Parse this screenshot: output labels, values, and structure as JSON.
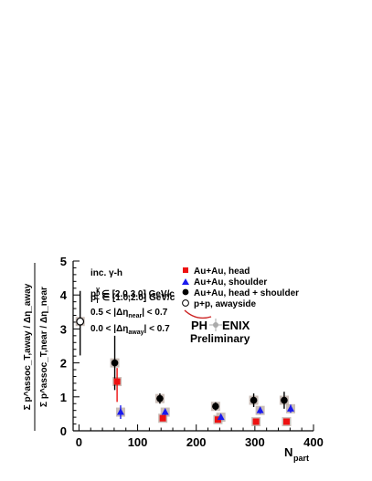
{
  "chart_data": {
    "type": "scatter",
    "title": "",
    "xlabel": "N",
    "xlabel_sub": "part",
    "ylabel_num": "Σ p^assoc_T,away / Δη_away",
    "ylabel_den": "Σ p^assoc_T,near / Δη_near",
    "xlim": [
      -10,
      400
    ],
    "ylim": [
      0,
      5
    ],
    "x_ticks": [
      0,
      100,
      200,
      300,
      400
    ],
    "y_ticks": [
      0,
      1,
      2,
      3,
      4,
      5
    ],
    "x_tick_labels": [
      "0",
      "100",
      "200",
      "300",
      "400"
    ],
    "y_tick_labels": [
      "0",
      "1",
      "2",
      "3",
      "4",
      "5"
    ],
    "grid": false,
    "legend_position": "top-right",
    "series": [
      {
        "name": "Au+Au, head",
        "marker": "square",
        "color": "#ee1111",
        "points": [
          {
            "x": 65,
            "y": 1.45,
            "err_lo": 0.6,
            "err_hi": 0.4
          },
          {
            "x": 143,
            "y": 0.37,
            "err_lo": 0.06,
            "err_hi": 0.06
          },
          {
            "x": 237,
            "y": 0.33,
            "err_lo": 0.05,
            "err_hi": 0.05
          },
          {
            "x": 302,
            "y": 0.27,
            "err_lo": 0.05,
            "err_hi": 0.05
          },
          {
            "x": 354,
            "y": 0.27,
            "err_lo": 0.05,
            "err_hi": 0.05
          }
        ]
      },
      {
        "name": "Au+Au, shoulder",
        "marker": "triangle",
        "color": "#1a1aee",
        "points": [
          {
            "x": 71,
            "y": 0.55,
            "err_lo": 0.2,
            "err_hi": 0.2
          },
          {
            "x": 147,
            "y": 0.55,
            "err_lo": 0.1,
            "err_hi": 0.1
          },
          {
            "x": 242,
            "y": 0.4,
            "err_lo": 0.07,
            "err_hi": 0.07
          },
          {
            "x": 309,
            "y": 0.6,
            "err_lo": 0.1,
            "err_hi": 0.1
          },
          {
            "x": 361,
            "y": 0.65,
            "err_lo": 0.12,
            "err_hi": 0.12
          }
        ]
      },
      {
        "name": "Au+Au, head + shoulder",
        "marker": "circle",
        "color": "#000000",
        "points": [
          {
            "x": 61,
            "y": 2.0,
            "err_lo": 0.8,
            "err_hi": 0.8
          },
          {
            "x": 138,
            "y": 0.95,
            "err_lo": 0.15,
            "err_hi": 0.15
          },
          {
            "x": 233,
            "y": 0.72,
            "err_lo": 0.12,
            "err_hi": 0.12
          },
          {
            "x": 298,
            "y": 0.9,
            "err_lo": 0.2,
            "err_hi": 0.2
          },
          {
            "x": 350,
            "y": 0.9,
            "err_lo": 0.25,
            "err_hi": 0.25
          }
        ]
      },
      {
        "name": "p+p, awayside",
        "marker": "open-circle",
        "color": "#000000",
        "points": [
          {
            "x": 2,
            "y": 3.22,
            "err_lo": 1.0,
            "err_hi": 0.9
          }
        ]
      }
    ],
    "systematic_boxes_color": "#b8a8a0",
    "annotations": {
      "reaction": "inc. γ-h",
      "line2_main": "p",
      "line2_sup": "γ",
      "line2_sub": "T",
      "line2_range": " ∈ [2.0,3.0] GeV/c",
      "line3_main": "p",
      "line3_sup": "h",
      "line3_sub": "T",
      "line3_range": " ∈ [1.0,2.0] GeV/c",
      "cut_near_lo": "0.5 < |Δη",
      "cut_near_sub": "near",
      "cut_near_hi": "| < 0.7",
      "cut_away_lo": "0.0 < |Δη",
      "cut_away_sub": "away",
      "cut_away_hi": "| < 0.7"
    },
    "logo": {
      "text_left": "PH",
      "text_right": "ENIX",
      "subtitle": "Preliminary"
    }
  }
}
